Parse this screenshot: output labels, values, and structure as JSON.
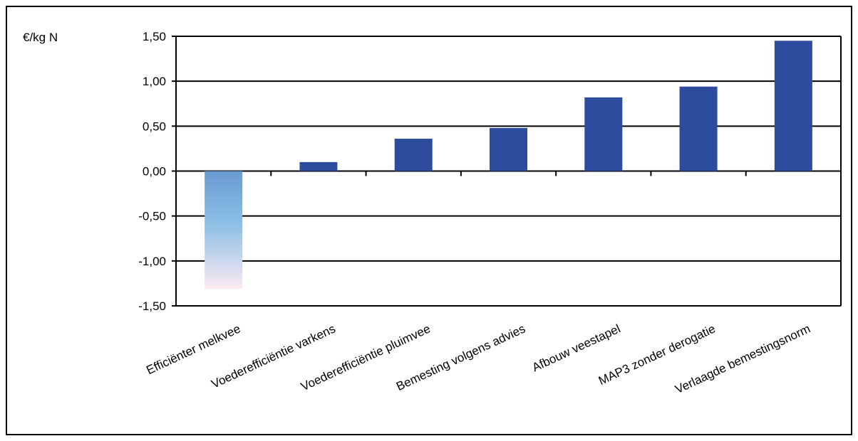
{
  "chart_data": {
    "type": "bar",
    "ylabel": "€/kg N",
    "categories": [
      "Efficiënter melkvee",
      "Voederefficiëntie varkens",
      "Voederefficiëntie pluimvee",
      "Bemesting volgens advies",
      "Afbouw veestapel",
      "MAP3 zonder derogatie",
      "Verlaagde bemestingsnorm"
    ],
    "values": [
      -1.31,
      0.1,
      0.36,
      0.48,
      0.82,
      0.94,
      1.45
    ],
    "yticks": [
      "1,50",
      "1,00",
      "0,50",
      "0,00",
      "-0,50",
      "-1,00",
      "-1,50"
    ],
    "ylim": [
      -1.5,
      1.5
    ],
    "grid": true,
    "legend": "none",
    "colors": {
      "bar": "#2e4c9e",
      "negative_gradient_top": "#6a9ad2",
      "negative_gradient_mid": "#8cbfe6",
      "negative_gradient_bottom": "#fbeaf2",
      "axis": "#000000"
    }
  }
}
